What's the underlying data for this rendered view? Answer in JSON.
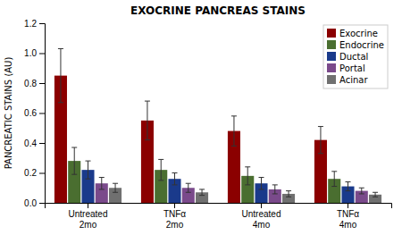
{
  "chart_data": {
    "type": "bar",
    "title": "EXOCRINE PANCREAS STAINS",
    "y_label": "PANCREATIC STAINS (AU)",
    "categories": [
      "Untreated\n2mo",
      "TNFα\n2mo",
      "Untreated\n4mo",
      "TNFα\n4mo"
    ],
    "series": [
      {
        "name": "Exocrine",
        "color": "#8B0000",
        "values": [
          0.85,
          0.55,
          0.48,
          0.42
        ],
        "errors": [
          0.18,
          0.13,
          0.1,
          0.09
        ]
      },
      {
        "name": "Endocrine",
        "color": "#4a6e30",
        "values": [
          0.28,
          0.22,
          0.18,
          0.16
        ],
        "errors": [
          0.09,
          0.07,
          0.06,
          0.05
        ]
      },
      {
        "name": "Ductal",
        "color": "#1a3a8b",
        "values": [
          0.22,
          0.16,
          0.13,
          0.11
        ],
        "errors": [
          0.06,
          0.04,
          0.04,
          0.03
        ]
      },
      {
        "name": "Portal",
        "color": "#7a4a8b",
        "values": [
          0.13,
          0.1,
          0.09,
          0.08
        ],
        "errors": [
          0.04,
          0.03,
          0.03,
          0.02
        ]
      },
      {
        "name": "Acinar",
        "color": "#707070",
        "values": [
          0.1,
          0.07,
          0.06,
          0.055
        ],
        "errors": [
          0.03,
          0.02,
          0.02,
          0.015
        ]
      }
    ],
    "ylim": [
      0,
      1.2
    ],
    "yticks": [
      {
        "value": 0,
        "label": "0.0"
      },
      0.2,
      0.4,
      0.6,
      0.8,
      {
        "value": 1,
        "label": "1.0"
      },
      1.2
    ],
    "legend": "upper right",
    "grid": false
  }
}
